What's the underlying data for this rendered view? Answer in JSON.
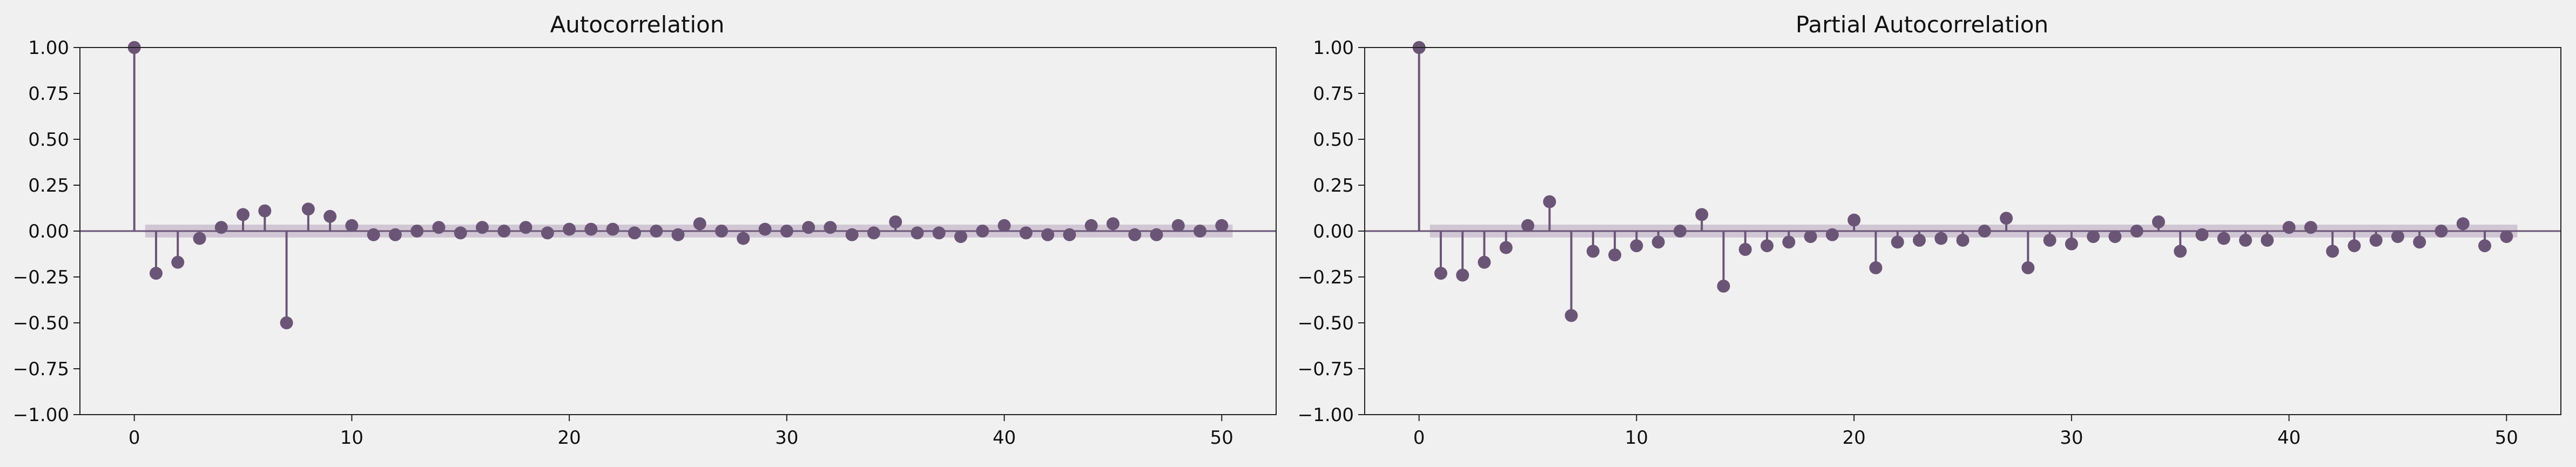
{
  "style": {
    "background": "#f0f0f0",
    "stem_color": "#6b5577",
    "marker_color": "#6b5577",
    "band_color": "#c8bccd",
    "axis_color": "#222222"
  },
  "chart_data": [
    {
      "type": "stem",
      "title": "Autocorrelation",
      "xlabel": "",
      "ylabel": "",
      "xlim": [
        -2.5,
        52.5
      ],
      "ylim": [
        -1.0,
        1.0
      ],
      "xticks": [
        0,
        10,
        20,
        30,
        40,
        50
      ],
      "xtick_labels": [
        "0",
        "10",
        "20",
        "30",
        "40",
        "50"
      ],
      "yticks": [
        1.0,
        0.75,
        0.5,
        0.25,
        0.0,
        -0.25,
        -0.5,
        -0.75,
        -1.0
      ],
      "ytick_labels": [
        "1.00",
        "0.75",
        "0.50",
        "0.25",
        "0.00",
        "−0.25",
        "−0.50",
        "−0.75",
        "−1.00"
      ],
      "grid": false,
      "confidence_band": 0.035,
      "lags": [
        0,
        1,
        2,
        3,
        4,
        5,
        6,
        7,
        8,
        9,
        10,
        11,
        12,
        13,
        14,
        15,
        16,
        17,
        18,
        19,
        20,
        21,
        22,
        23,
        24,
        25,
        26,
        27,
        28,
        29,
        30,
        31,
        32,
        33,
        34,
        35,
        36,
        37,
        38,
        39,
        40,
        41,
        42,
        43,
        44,
        45,
        46,
        47,
        48,
        49,
        50
      ],
      "values": [
        1.0,
        -0.23,
        -0.17,
        -0.04,
        0.02,
        0.09,
        0.11,
        -0.5,
        0.12,
        0.08,
        0.03,
        -0.02,
        -0.02,
        0.0,
        0.02,
        -0.01,
        0.02,
        0.0,
        0.02,
        -0.01,
        0.01,
        0.01,
        0.01,
        -0.01,
        0.0,
        -0.02,
        0.04,
        0.0,
        -0.04,
        0.01,
        0.0,
        0.02,
        0.02,
        -0.02,
        -0.01,
        0.05,
        -0.01,
        -0.01,
        -0.03,
        0.0,
        0.03,
        -0.01,
        -0.02,
        -0.02,
        0.03,
        0.04,
        -0.02,
        -0.02,
        0.03,
        0.0,
        0.03
      ]
    },
    {
      "type": "stem",
      "title": "Partial Autocorrelation",
      "xlabel": "",
      "ylabel": "",
      "xlim": [
        -2.5,
        52.5
      ],
      "ylim": [
        -1.0,
        1.0
      ],
      "xticks": [
        0,
        10,
        20,
        30,
        40,
        50
      ],
      "xtick_labels": [
        "0",
        "10",
        "20",
        "30",
        "40",
        "50"
      ],
      "yticks": [
        1.0,
        0.75,
        0.5,
        0.25,
        0.0,
        -0.25,
        -0.5,
        -0.75,
        -1.0
      ],
      "ytick_labels": [
        "1.00",
        "0.75",
        "0.50",
        "0.25",
        "0.00",
        "−0.25",
        "−0.50",
        "−0.75",
        "−1.00"
      ],
      "grid": false,
      "confidence_band": 0.035,
      "lags": [
        0,
        1,
        2,
        3,
        4,
        5,
        6,
        7,
        8,
        9,
        10,
        11,
        12,
        13,
        14,
        15,
        16,
        17,
        18,
        19,
        20,
        21,
        22,
        23,
        24,
        25,
        26,
        27,
        28,
        29,
        30,
        31,
        32,
        33,
        34,
        35,
        36,
        37,
        38,
        39,
        40,
        41,
        42,
        43,
        44,
        45,
        46,
        47,
        48,
        49,
        50
      ],
      "values": [
        1.0,
        -0.23,
        -0.24,
        -0.17,
        -0.09,
        0.03,
        0.16,
        -0.46,
        -0.11,
        -0.13,
        -0.08,
        -0.06,
        0.0,
        0.09,
        -0.3,
        -0.1,
        -0.08,
        -0.06,
        -0.03,
        -0.02,
        0.06,
        -0.2,
        -0.06,
        -0.05,
        -0.04,
        -0.05,
        0.0,
        0.07,
        -0.2,
        -0.05,
        -0.07,
        -0.03,
        -0.03,
        0.0,
        0.05,
        -0.11,
        -0.02,
        -0.04,
        -0.05,
        -0.05,
        0.02,
        0.02,
        -0.11,
        -0.08,
        -0.05,
        -0.03,
        -0.06,
        0.0,
        0.04,
        -0.08,
        -0.03
      ]
    }
  ]
}
